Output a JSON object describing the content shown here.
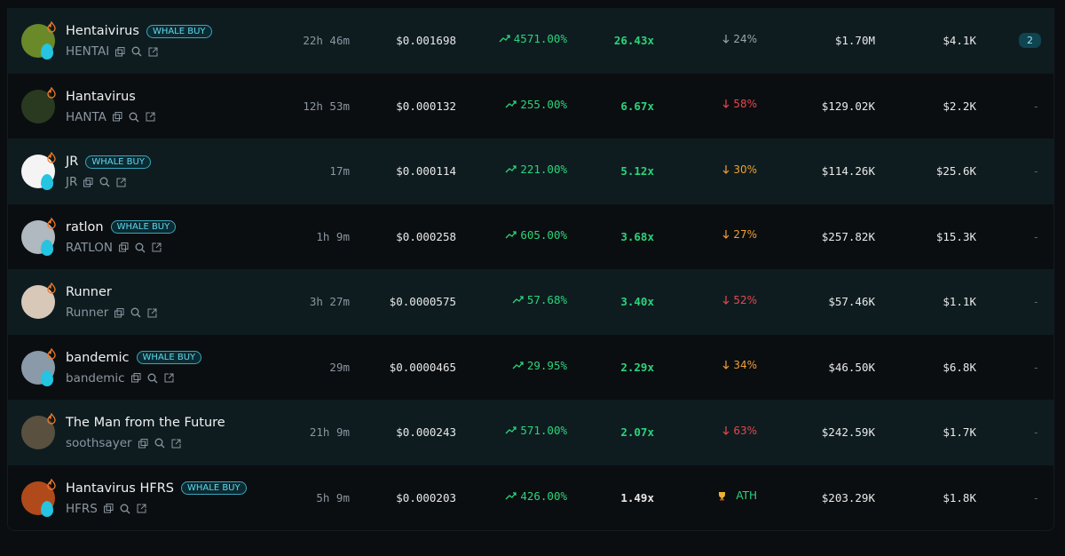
{
  "table": {
    "rows": [
      {
        "name": "Hentaivirus",
        "badge": "WHALE BUY",
        "symbol": "HENTAI",
        "age": "22h 46m",
        "price": "$0.001698",
        "change": "4571.00%",
        "multiple": "26.43x",
        "multiple_color": "#2bd47a",
        "drop": "24%",
        "drop_icon": "down",
        "drop_color": "#9aa4ad",
        "mcap": "$1.70M",
        "volume": "$4.1K",
        "extra": "2",
        "extra_style": "pill",
        "avatar_color": "#6a8a2a"
      },
      {
        "name": "Hantavirus",
        "symbol": "HANTA",
        "age": "12h 53m",
        "price": "$0.000132",
        "change": "255.00%",
        "multiple": "6.67x",
        "multiple_color": "#2bd47a",
        "drop": "58%",
        "drop_icon": "down",
        "drop_color": "#e5484d",
        "mcap": "$129.02K",
        "volume": "$2.2K",
        "extra": "-",
        "extra_style": "plain",
        "avatar_color": "#2a3a20"
      },
      {
        "name": "JR",
        "badge": "WHALE BUY",
        "symbol": "JR",
        "age": "17m",
        "price": "$0.000114",
        "change": "221.00%",
        "multiple": "5.12x",
        "multiple_color": "#2bd47a",
        "drop": "30%",
        "drop_icon": "down",
        "drop_color": "#f0a030",
        "mcap": "$114.26K",
        "volume": "$25.6K",
        "extra": "-",
        "extra_style": "plain",
        "avatar_color": "#f4f4f4"
      },
      {
        "name": "ratlon",
        "badge": "WHALE BUY",
        "symbol": "RATLON",
        "age": "1h 9m",
        "price": "$0.000258",
        "change": "605.00%",
        "multiple": "3.68x",
        "multiple_color": "#2bd47a",
        "drop": "27%",
        "drop_icon": "down",
        "drop_color": "#f0a030",
        "mcap": "$257.82K",
        "volume": "$15.3K",
        "extra": "-",
        "extra_style": "plain",
        "avatar_color": "#b0b8c0"
      },
      {
        "name": "Runner",
        "symbol": "Runner",
        "age": "3h 27m",
        "price": "$0.0000575",
        "change": "57.68%",
        "multiple": "3.40x",
        "multiple_color": "#2bd47a",
        "drop": "52%",
        "drop_icon": "down",
        "drop_color": "#e5484d",
        "mcap": "$57.46K",
        "volume": "$1.1K",
        "extra": "-",
        "extra_style": "plain",
        "avatar_color": "#d8c8b8"
      },
      {
        "name": "bandemic",
        "badge": "WHALE BUY",
        "symbol": "bandemic",
        "age": "29m",
        "price": "$0.0000465",
        "change": "29.95%",
        "multiple": "2.29x",
        "multiple_color": "#2bd47a",
        "drop": "34%",
        "drop_icon": "down",
        "drop_color": "#f0a030",
        "mcap": "$46.50K",
        "volume": "$6.8K",
        "extra": "-",
        "extra_style": "plain",
        "avatar_color": "#8a9aa8"
      },
      {
        "name": "The Man from the Future",
        "symbol": "soothsayer",
        "age": "21h 9m",
        "price": "$0.000243",
        "change": "571.00%",
        "multiple": "2.07x",
        "multiple_color": "#2bd47a",
        "drop": "63%",
        "drop_icon": "down",
        "drop_color": "#e5484d",
        "mcap": "$242.59K",
        "volume": "$1.7K",
        "extra": "-",
        "extra_style": "plain",
        "avatar_color": "#5a5040"
      },
      {
        "name": "Hantavirus HFRS",
        "badge": "WHALE BUY",
        "symbol": "HFRS",
        "age": "5h 9m",
        "price": "$0.000203",
        "change": "426.00%",
        "multiple": "1.49x",
        "multiple_color": "#e8e8e8",
        "drop": "ATH",
        "drop_icon": "trophy",
        "drop_color": "#2bd47a",
        "mcap": "$203.29K",
        "volume": "$1.8K",
        "extra": "-",
        "extra_style": "plain",
        "avatar_color": "#b04a1a"
      }
    ]
  }
}
